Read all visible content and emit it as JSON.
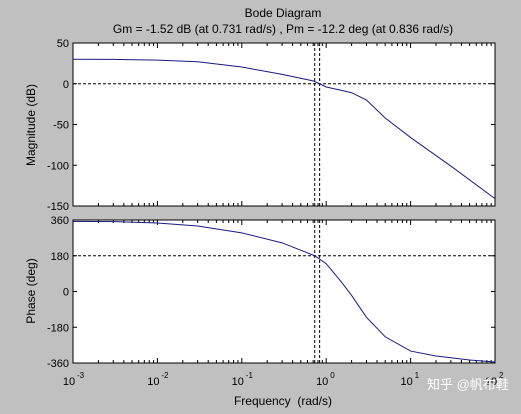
{
  "chart_data": [
    {
      "type": "line",
      "title": "Bode Diagram",
      "subtitle": "Gm = -1.52 dB (at 0.731 rad/s) ,  Pm = -12.2 deg (at 0.836 rad/s)",
      "xlabel": "",
      "ylabel": "Magnitude (dB)",
      "xscale": "log",
      "xlim": [
        0.001,
        100
      ],
      "ylim": [
        -150,
        50
      ],
      "yticks": [
        50,
        0,
        -50,
        -100,
        -150
      ],
      "grid": false,
      "series": [
        {
          "color": "#1a1a80",
          "x": [
            0.001,
            0.003,
            0.01,
            0.03,
            0.1,
            0.3,
            0.7,
            0.836,
            1,
            1.5,
            2,
            3,
            5,
            10,
            30,
            100
          ],
          "y": [
            30,
            29.9,
            29,
            27,
            20.5,
            11.5,
            3.5,
            0,
            -4,
            -8,
            -11,
            -20,
            -42,
            -66,
            -101,
            -141
          ]
        }
      ],
      "markers": {
        "zero_line": 0,
        "crossover_x": [
          0.731,
          0.836
        ]
      }
    },
    {
      "type": "line",
      "xlabel": "Frequency  (rad/s)",
      "ylabel": "Phase (deg)",
      "xscale": "log",
      "xlim": [
        0.001,
        100
      ],
      "ylim": [
        -360,
        360
      ],
      "yticks": [
        360,
        180,
        0,
        -180,
        -360
      ],
      "xticks": [
        "10",
        "10",
        "10",
        "10",
        "10",
        "10"
      ],
      "xtick_exponents": [
        "-3",
        "-2",
        "-1",
        "0",
        "1",
        "2"
      ],
      "grid": false,
      "series": [
        {
          "color": "#1a1a80",
          "x": [
            0.001,
            0.003,
            0.01,
            0.03,
            0.1,
            0.3,
            0.731,
            1,
            1.5,
            2,
            3,
            5,
            10,
            20,
            50,
            100
          ],
          "y": [
            353,
            352,
            345,
            330,
            295,
            245,
            180,
            140,
            50,
            -20,
            -130,
            -228,
            -300,
            -325,
            -345,
            -355
          ]
        }
      ],
      "markers": {
        "ref_line": 180,
        "crossover_x": [
          0.731,
          0.836
        ]
      }
    }
  ],
  "watermark": "知乎 @帆布鞋"
}
